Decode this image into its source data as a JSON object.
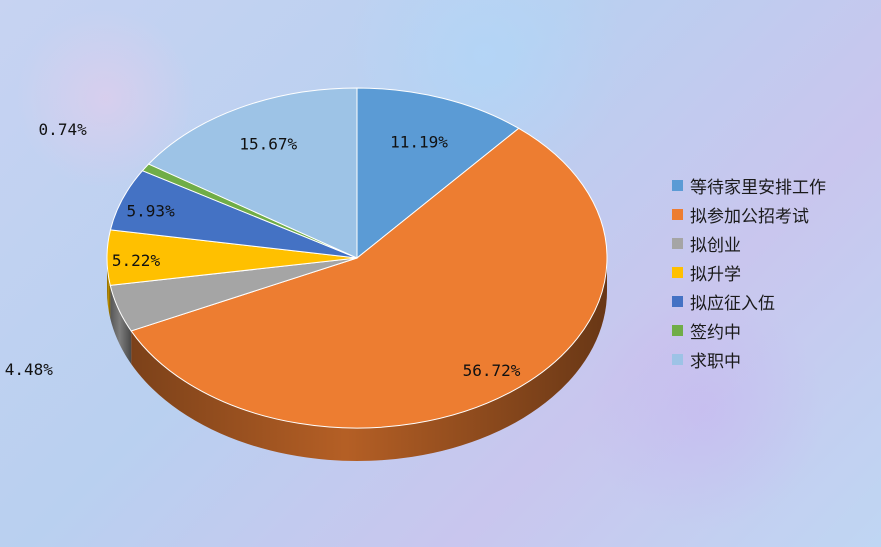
{
  "chart_data": {
    "type": "pie",
    "title": "",
    "categories": [
      "等待家里安排工作",
      "拟参加公招考试",
      "拟创业",
      "拟升学",
      "拟应征入伍",
      "签约中",
      "求职中"
    ],
    "values": [
      11.19,
      56.72,
      4.48,
      5.22,
      5.93,
      0.74,
      15.67
    ],
    "labels": [
      "11.19%",
      "56.72%",
      "4.48%",
      "5.22%",
      "5.93%",
      "0.74%",
      "15.67%"
    ],
    "colors": [
      "#5B9BD5",
      "#ED7D31",
      "#A5A5A5",
      "#FFC000",
      "#4472C4",
      "#70AD47",
      "#9DC3E6"
    ],
    "style": "3d-pie",
    "legend_position": "right"
  }
}
